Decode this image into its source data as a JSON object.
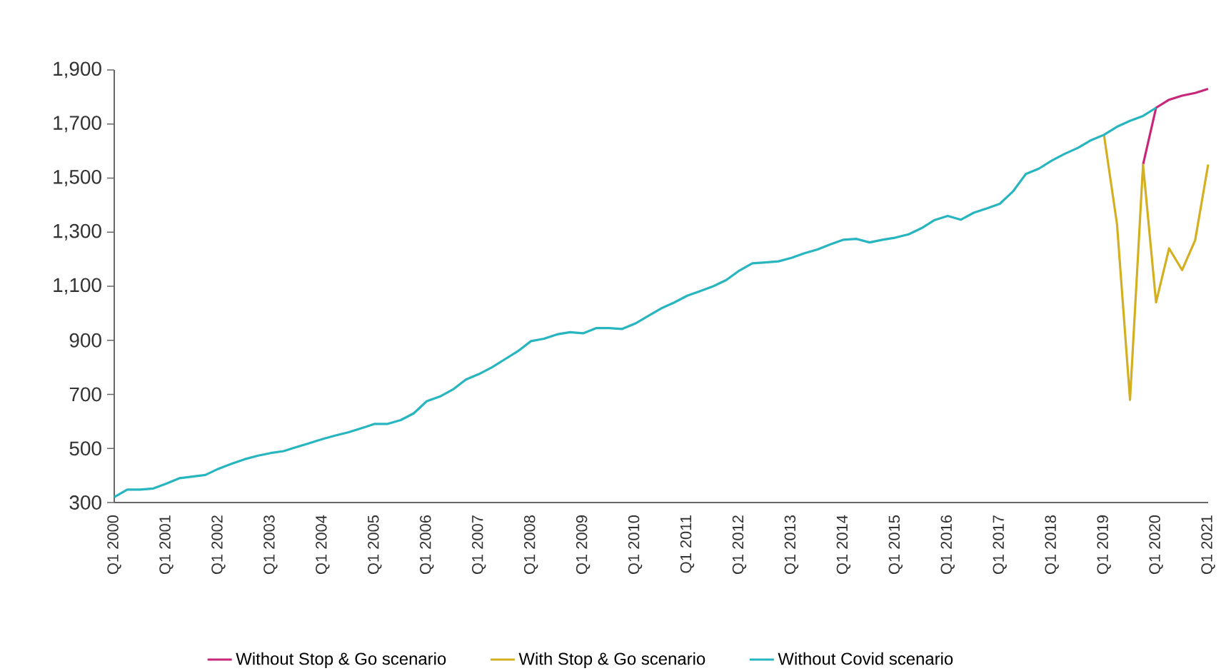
{
  "chart_data": {
    "type": "line",
    "categories": [
      "Q1 2000",
      null,
      null,
      null,
      "Q1 2001",
      null,
      null,
      null,
      "Q1 2002",
      null,
      null,
      null,
      "Q1 2003",
      null,
      null,
      null,
      "Q1 2004",
      null,
      null,
      null,
      "Q1 2005",
      null,
      null,
      null,
      "Q1 2006",
      null,
      null,
      null,
      "Q1 2007",
      null,
      null,
      null,
      "Q1 2008",
      null,
      null,
      null,
      "Q1 2009",
      null,
      null,
      null,
      "Q1 2010",
      null,
      null,
      null,
      "Q1 2011",
      null,
      null,
      null,
      "Q1 2012",
      null,
      null,
      null,
      "Q1 2013",
      null,
      null,
      null,
      "Q1 2014",
      null,
      null,
      null,
      "Q1 2015",
      null,
      null,
      null,
      "Q1 2016",
      null,
      null,
      null,
      "Q1 2017",
      null,
      null,
      null,
      "Q1 2018",
      null,
      null,
      null,
      "Q1 2019",
      null,
      null,
      null,
      "Q1 2020",
      null,
      null,
      null,
      "Q1 2021"
    ],
    "series": [
      {
        "name": "Without Stop & Go scenario",
        "color": "#c8267a",
        "values": [
          null,
          null,
          null,
          null,
          null,
          null,
          null,
          null,
          null,
          null,
          null,
          null,
          null,
          null,
          null,
          null,
          null,
          null,
          null,
          null,
          null,
          null,
          null,
          null,
          null,
          null,
          null,
          null,
          null,
          null,
          null,
          null,
          null,
          null,
          null,
          null,
          null,
          null,
          null,
          null,
          null,
          null,
          null,
          null,
          null,
          null,
          null,
          null,
          null,
          null,
          null,
          null,
          null,
          null,
          null,
          null,
          null,
          null,
          null,
          null,
          null,
          null,
          null,
          null,
          null,
          null,
          null,
          null,
          null,
          null,
          null,
          null,
          null,
          null,
          null,
          null,
          null,
          null,
          null,
          1550,
          1760,
          1790,
          1805,
          1815,
          1830
        ]
      },
      {
        "name": "With Stop & Go scenario",
        "color": "#d4b021",
        "values": [
          null,
          null,
          null,
          null,
          null,
          null,
          null,
          null,
          null,
          null,
          null,
          null,
          null,
          null,
          null,
          null,
          null,
          null,
          null,
          null,
          null,
          null,
          null,
          null,
          null,
          null,
          null,
          null,
          null,
          null,
          null,
          null,
          null,
          null,
          null,
          null,
          null,
          null,
          null,
          null,
          null,
          null,
          null,
          null,
          null,
          null,
          null,
          null,
          null,
          null,
          null,
          null,
          null,
          null,
          null,
          null,
          null,
          null,
          null,
          null,
          null,
          null,
          null,
          null,
          null,
          null,
          null,
          null,
          null,
          null,
          null,
          null,
          null,
          null,
          null,
          null,
          1660,
          1330,
          680,
          1550,
          1040,
          1240,
          1160,
          1270,
          1550
        ]
      },
      {
        "name": "Without Covid scenario",
        "color": "#27b5bf",
        "values": [
          320,
          348,
          348,
          352,
          370,
          390,
          396,
          402,
          425,
          443,
          460,
          473,
          483,
          490,
          505,
          520,
          535,
          548,
          560,
          575,
          591,
          591,
          605,
          630,
          675,
          692,
          718,
          755,
          775,
          800,
          830,
          860,
          897,
          906,
          922,
          930,
          926,
          945,
          945,
          942,
          962,
          990,
          1018,
          1040,
          1065,
          1082,
          1100,
          1123,
          1158,
          1185,
          1188,
          1192,
          1205,
          1222,
          1236,
          1255,
          1272,
          1275,
          1262,
          1272,
          1280,
          1292,
          1315,
          1345,
          1360,
          1346,
          1372,
          1388,
          1405,
          1450,
          1515,
          1535,
          1565,
          1590,
          1612,
          1640,
          1660,
          1690,
          1712,
          1730,
          1760,
          null,
          null,
          null,
          null
        ]
      }
    ],
    "ylim": [
      300,
      1900
    ],
    "yticks": [
      300,
      500,
      700,
      900,
      {
        "value": 1100,
        "label": "1,100"
      },
      {
        "value": 1300,
        "label": "1,300"
      },
      {
        "value": 1500,
        "label": "1,500"
      },
      {
        "value": 1700,
        "label": "1,700"
      },
      {
        "value": 1900,
        "label": "1,900"
      }
    ],
    "legend": "bottom"
  }
}
